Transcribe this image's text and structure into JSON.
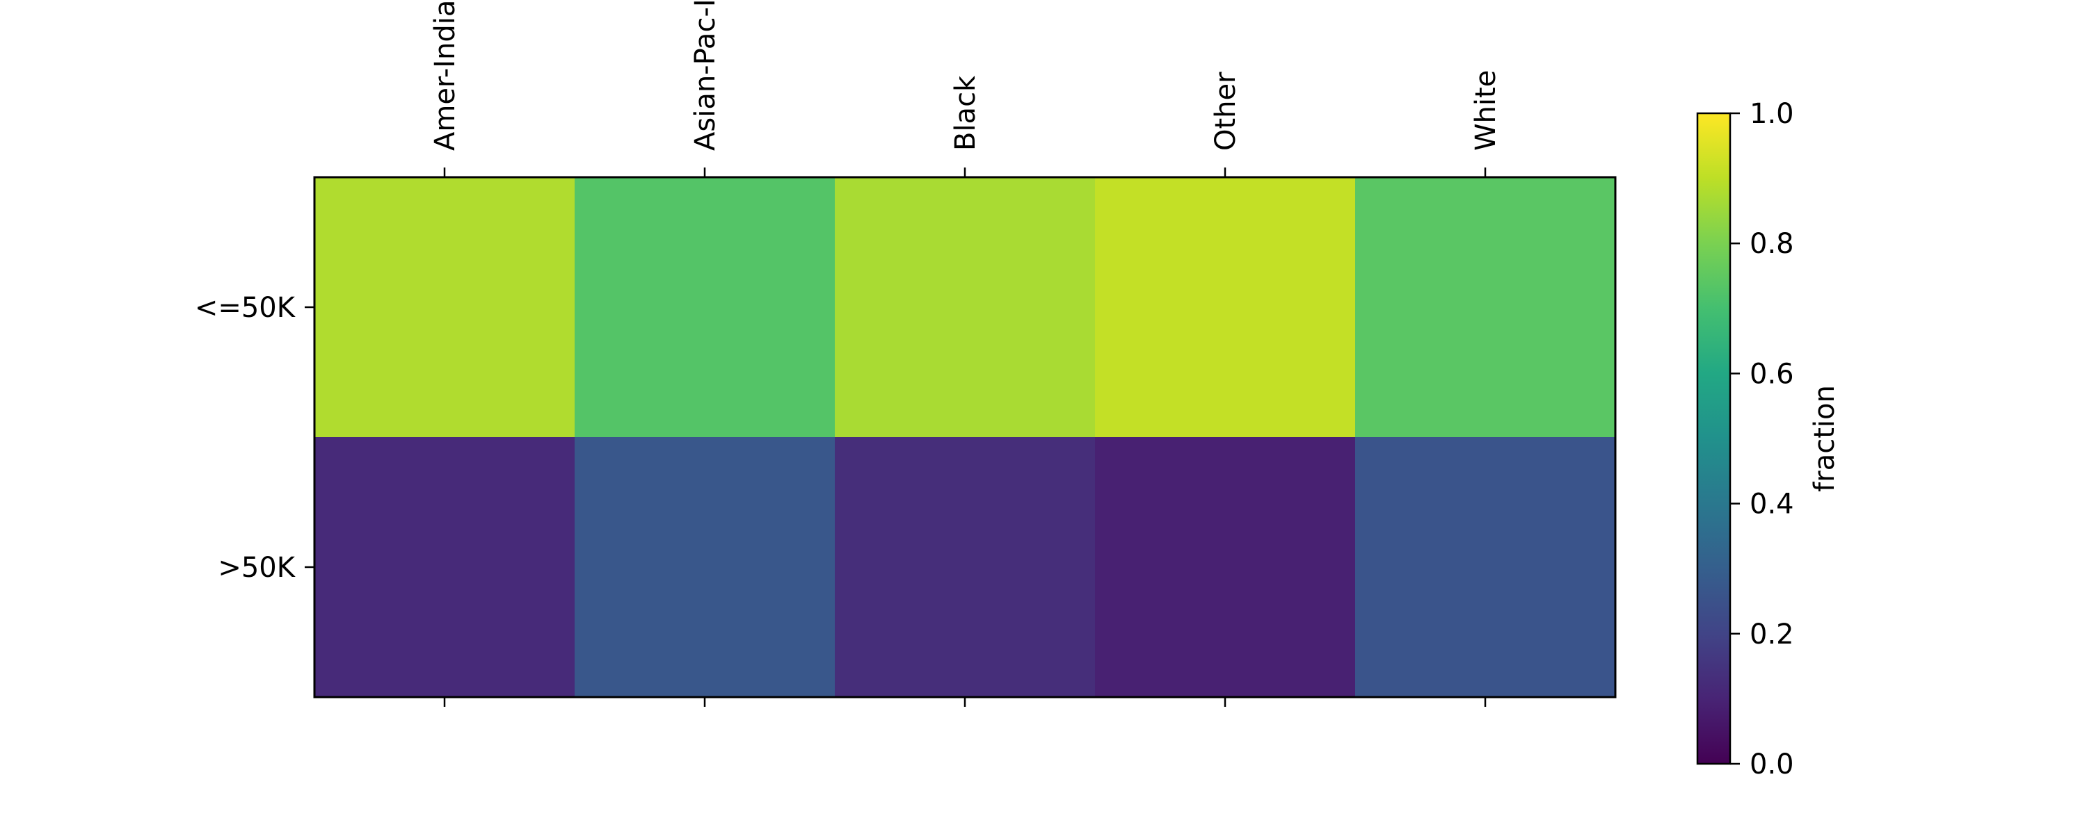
{
  "chart_data": {
    "type": "heatmap",
    "columns": [
      "Amer-Indian-Eskimo",
      "Asian-Pac-Islander",
      "Black",
      "Other",
      "White"
    ],
    "rows": [
      "<=50K",
      ">50K"
    ],
    "values": [
      [
        0.88,
        0.73,
        0.87,
        0.91,
        0.74
      ],
      [
        0.12,
        0.27,
        0.13,
        0.09,
        0.26
      ]
    ],
    "colorbar": {
      "label": "fraction",
      "range": [
        0.0,
        1.0
      ],
      "ticks": [
        "0.0",
        "0.2",
        "0.4",
        "0.6",
        "0.8",
        "1.0"
      ],
      "colormap": "viridis"
    },
    "x_tick_position": "top",
    "title": ""
  }
}
